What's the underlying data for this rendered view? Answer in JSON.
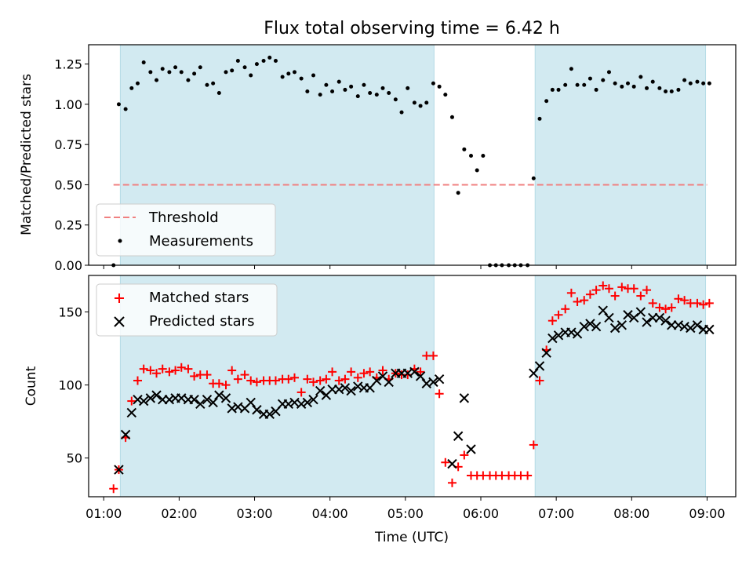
{
  "chart_data": {
    "type": "scatter",
    "title": "Flux total observing time = 6.42 h",
    "xlabel": "Time (UTC)",
    "x_unit": "hours UTC",
    "xlim": [
      0.8,
      9.38
    ],
    "xticks": [
      1,
      2,
      3,
      4,
      5,
      6,
      7,
      8,
      9
    ],
    "xtick_labels": [
      "01:00",
      "02:00",
      "03:00",
      "04:00",
      "05:00",
      "06:00",
      "07:00",
      "08:00",
      "09:00"
    ],
    "shaded_intervals": [
      [
        1.22,
        5.38
      ],
      [
        6.72,
        8.98
      ]
    ],
    "shade_color": "#d2eaf1",
    "panels": [
      {
        "ylabel": "Matched/Predicted stars",
        "ylim": [
          0,
          1.37
        ],
        "yticks": [
          0.0,
          0.25,
          0.5,
          0.75,
          1.0,
          1.25
        ],
        "ytick_labels": [
          "0.00",
          "0.25",
          "0.50",
          "0.75",
          "1.00",
          "1.25"
        ],
        "threshold": {
          "name": "Threshold",
          "value": 0.5,
          "x_range": [
            1.13,
            9.0
          ],
          "color": "#f08080"
        },
        "series": [
          {
            "name": "Measurements",
            "marker": "dot",
            "color": "#000000",
            "x": [
              1.13,
              1.2,
              1.29,
              1.37,
              1.45,
              1.53,
              1.62,
              1.7,
              1.78,
              1.87,
              1.95,
              2.03,
              2.12,
              2.2,
              2.28,
              2.37,
              2.45,
              2.53,
              2.62,
              2.7,
              2.78,
              2.87,
              2.95,
              3.03,
              3.12,
              3.2,
              3.28,
              3.37,
              3.45,
              3.53,
              3.62,
              3.7,
              3.78,
              3.87,
              3.95,
              4.03,
              4.12,
              4.2,
              4.28,
              4.37,
              4.45,
              4.53,
              4.62,
              4.7,
              4.78,
              4.87,
              4.95,
              5.03,
              5.12,
              5.2,
              5.28,
              5.37,
              5.45,
              5.53,
              5.62,
              5.7,
              5.78,
              5.87,
              5.95,
              6.03,
              6.12,
              6.2,
              6.28,
              6.37,
              6.45,
              6.53,
              6.62,
              6.7,
              6.78,
              6.87,
              6.95,
              7.03,
              7.12,
              7.2,
              7.28,
              7.37,
              7.45,
              7.53,
              7.62,
              7.7,
              7.78,
              7.87,
              7.95,
              8.03,
              8.12,
              8.2,
              8.28,
              8.37,
              8.45,
              8.53,
              8.62,
              8.7,
              8.78,
              8.87,
              8.95,
              9.03
            ],
            "values": [
              0.0,
              1.0,
              0.97,
              1.1,
              1.13,
              1.26,
              1.2,
              1.15,
              1.22,
              1.2,
              1.23,
              1.2,
              1.15,
              1.19,
              1.23,
              1.12,
              1.13,
              1.07,
              1.2,
              1.21,
              1.27,
              1.23,
              1.18,
              1.25,
              1.27,
              1.29,
              1.27,
              1.17,
              1.19,
              1.2,
              1.16,
              1.08,
              1.18,
              1.06,
              1.12,
              1.08,
              1.14,
              1.09,
              1.11,
              1.05,
              1.12,
              1.07,
              1.06,
              1.1,
              1.07,
              1.03,
              0.95,
              1.1,
              1.01,
              0.99,
              1.01,
              1.13,
              1.11,
              1.06,
              0.92,
              0.45,
              0.72,
              0.68,
              0.59,
              0.68,
              0.0,
              0.0,
              0.0,
              0.0,
              0.0,
              0.0,
              0.0,
              0.54,
              0.91,
              1.02,
              1.09,
              1.09,
              1.12,
              1.22,
              1.12,
              1.12,
              1.16,
              1.09,
              1.15,
              1.2,
              1.13,
              1.11,
              1.13,
              1.11,
              1.17,
              1.1,
              1.14,
              1.1,
              1.08,
              1.08,
              1.09,
              1.15,
              1.13,
              1.14,
              1.13,
              1.13
            ]
          }
        ]
      },
      {
        "ylabel": "Count",
        "ylim": [
          23.5,
          175
        ],
        "yticks": [
          50,
          100,
          150
        ],
        "ytick_labels": [
          "50",
          "100",
          "150"
        ],
        "series": [
          {
            "name": "Matched stars",
            "marker": "plus",
            "color": "#ff0000",
            "x": [
              1.13,
              1.2,
              1.29,
              1.37,
              1.45,
              1.53,
              1.62,
              1.7,
              1.78,
              1.87,
              1.95,
              2.03,
              2.12,
              2.2,
              2.28,
              2.37,
              2.45,
              2.53,
              2.62,
              2.7,
              2.78,
              2.87,
              2.95,
              3.03,
              3.12,
              3.2,
              3.28,
              3.37,
              3.45,
              3.53,
              3.62,
              3.7,
              3.78,
              3.87,
              3.95,
              4.03,
              4.12,
              4.2,
              4.28,
              4.37,
              4.45,
              4.53,
              4.62,
              4.7,
              4.78,
              4.87,
              4.95,
              5.03,
              5.12,
              5.2,
              5.28,
              5.37,
              5.45,
              5.53,
              5.62,
              5.7,
              5.78,
              5.87,
              5.95,
              6.03,
              6.12,
              6.2,
              6.28,
              6.37,
              6.45,
              6.53,
              6.62,
              6.7,
              6.78,
              6.87,
              6.95,
              7.03,
              7.12,
              7.2,
              7.28,
              7.37,
              7.45,
              7.53,
              7.62,
              7.7,
              7.78,
              7.87,
              7.95,
              8.03,
              8.12,
              8.2,
              8.28,
              8.37,
              8.45,
              8.53,
              8.62,
              8.7,
              8.78,
              8.87,
              8.95,
              9.03
            ],
            "values": [
              29,
              42,
              64,
              89,
              103,
              111,
              110,
              108,
              111,
              109,
              110,
              112,
              111,
              106,
              107,
              107,
              101,
              101,
              100,
              110,
              104,
              107,
              103,
              102,
              103,
              103,
              103,
              104,
              104,
              105,
              95,
              104,
              102,
              103,
              104,
              109,
              103,
              104,
              109,
              105,
              108,
              109,
              105,
              110,
              104,
              108,
              107,
              107,
              111,
              109,
              120,
              120,
              94,
              47,
              33,
              44,
              52,
              38,
              38,
              38,
              38,
              38,
              38,
              38,
              38,
              38,
              38,
              59,
              103,
              124,
              144,
              148,
              152,
              163,
              157,
              158,
              162,
              165,
              168,
              166,
              161,
              167,
              166,
              166,
              161,
              165,
              156,
              153,
              152,
              153,
              159,
              158,
              156,
              156,
              155,
              156
            ]
          },
          {
            "name": "Predicted stars",
            "marker": "x",
            "color": "#000000",
            "x": [
              1.2,
              1.29,
              1.37,
              1.45,
              1.53,
              1.62,
              1.7,
              1.78,
              1.87,
              1.95,
              2.03,
              2.12,
              2.2,
              2.28,
              2.37,
              2.45,
              2.53,
              2.62,
              2.7,
              2.78,
              2.87,
              2.95,
              3.03,
              3.12,
              3.2,
              3.28,
              3.37,
              3.45,
              3.53,
              3.62,
              3.7,
              3.78,
              3.87,
              3.95,
              4.03,
              4.12,
              4.2,
              4.28,
              4.37,
              4.45,
              4.53,
              4.62,
              4.7,
              4.78,
              4.87,
              4.95,
              5.03,
              5.12,
              5.2,
              5.28,
              5.37,
              5.45,
              5.62,
              5.7,
              5.78,
              5.87,
              6.7,
              6.78,
              6.87,
              6.95,
              7.03,
              7.12,
              7.2,
              7.28,
              7.37,
              7.45,
              7.53,
              7.62,
              7.7,
              7.78,
              7.87,
              7.95,
              8.03,
              8.12,
              8.2,
              8.28,
              8.37,
              8.45,
              8.53,
              8.62,
              8.7,
              8.78,
              8.87,
              8.95,
              9.03
            ],
            "values": [
              42,
              66,
              81,
              90,
              89,
              91,
              93,
              90,
              90,
              91,
              91,
              90,
              90,
              87,
              90,
              88,
              93,
              91,
              84,
              85,
              84,
              88,
              83,
              80,
              80,
              82,
              87,
              87,
              88,
              87,
              88,
              90,
              96,
              93,
              97,
              97,
              98,
              96,
              99,
              98,
              98,
              103,
              106,
              102,
              108,
              108,
              108,
              109,
              106,
              101,
              102,
              104,
              46,
              65,
              91,
              56,
              108,
              113,
              122,
              132,
              134,
              136,
              136,
              135,
              140,
              142,
              140,
              151,
              146,
              139,
              141,
              148,
              146,
              150,
              143,
              146,
              146,
              144,
              141,
              141,
              140,
              139,
              141,
              138,
              138
            ]
          }
        ]
      }
    ]
  }
}
